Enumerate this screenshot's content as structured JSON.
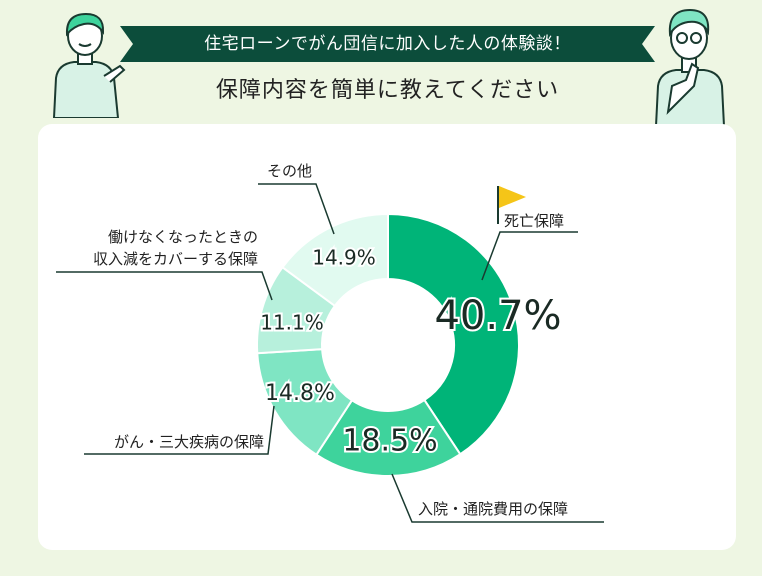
{
  "header": {
    "banner_text": "住宅ローンでがん団信に加入した人の体験談！",
    "subtitle": "保障内容を簡単に教えてください"
  },
  "colors": {
    "background": "#eef6e3",
    "banner": "#0c4d3b",
    "card": "#ffffff",
    "flag": "#f5c518"
  },
  "chart_data": {
    "type": "pie",
    "donut": true,
    "unit": "%",
    "slices": [
      {
        "label": "死亡保障",
        "value": 40.7,
        "value_label": "40.7%",
        "color": "#00b478"
      },
      {
        "label": "入院・通院費用の保障",
        "value": 18.5,
        "value_label": "18.5%",
        "color": "#3ed39c"
      },
      {
        "label": "がん・三大疾病の保障",
        "value": 14.8,
        "value_label": "14.8%",
        "color": "#7fe5c3"
      },
      {
        "label": "働けなくなったときの\n収入減をカバーする保障",
        "value": 11.1,
        "value_label": "11.1%",
        "color": "#b7f0dc"
      },
      {
        "label": "その他",
        "value": 14.9,
        "value_label": "14.9%",
        "color": "#e1faf0"
      }
    ]
  }
}
